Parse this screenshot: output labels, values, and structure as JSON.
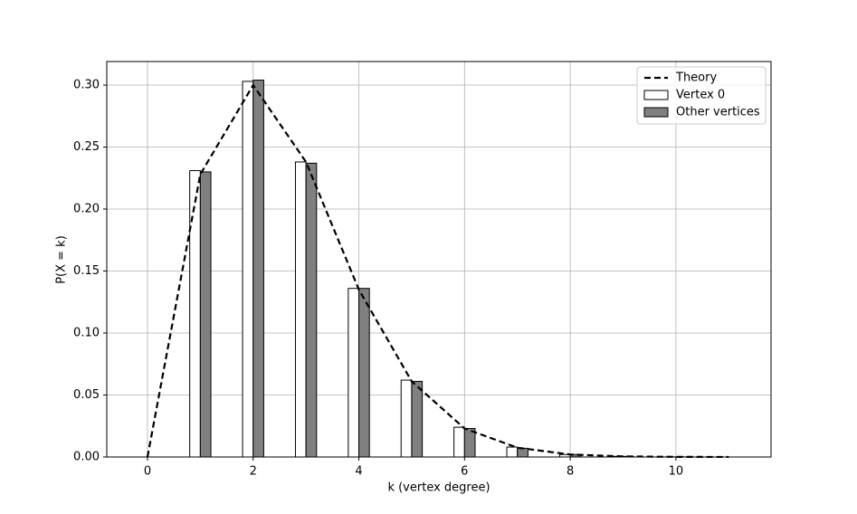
{
  "chart_data": {
    "type": "bar_line",
    "xlabel": "k (vertex degree)",
    "ylabel": "P(X = k)",
    "xlim": [
      -0.77,
      11.8
    ],
    "ylim": [
      0,
      0.319
    ],
    "xticks": [
      0,
      2,
      4,
      6,
      8,
      10
    ],
    "yticks": [
      {
        "value": 0,
        "label": "0.00"
      },
      {
        "value": 0.05,
        "label": "0.05"
      },
      {
        "value": 0.1,
        "label": "0.10"
      },
      {
        "value": 0.15,
        "label": "0.15"
      },
      {
        "value": 0.2,
        "label": "0.20"
      },
      {
        "value": 0.25,
        "label": "0.25"
      },
      {
        "value": 0.3,
        "label": "0.30"
      }
    ],
    "grid": true,
    "legend": "upper right",
    "series": [
      {
        "name": "Theory",
        "type": "line",
        "color": "#000000",
        "dashed": true,
        "x": [
          0,
          1,
          2,
          3,
          4,
          5,
          6,
          7,
          8,
          9,
          10,
          11
        ],
        "values": [
          0,
          0.228,
          0.3,
          0.238,
          0.135,
          0.061,
          0.023,
          0.0075,
          0.002,
          0.0005,
          0.0001,
          3e-05
        ]
      },
      {
        "name": "Vertex 0",
        "type": "bar",
        "color": "#ffffff",
        "x": [
          0,
          1,
          2,
          3,
          4,
          5,
          6,
          7,
          8,
          9,
          10
        ],
        "values": [
          0,
          0.231,
          0.303,
          0.238,
          0.136,
          0.062,
          0.024,
          0.008,
          0.002,
          0.0005,
          0.0001
        ]
      },
      {
        "name": "Other vertices",
        "type": "bar",
        "color": "#808080",
        "x": [
          0,
          1,
          2,
          3,
          4,
          5,
          6,
          7,
          8,
          9,
          10
        ],
        "values": [
          0,
          0.23,
          0.304,
          0.237,
          0.136,
          0.061,
          0.023,
          0.007,
          0.002,
          0.0005,
          0.0001
        ]
      }
    ]
  }
}
